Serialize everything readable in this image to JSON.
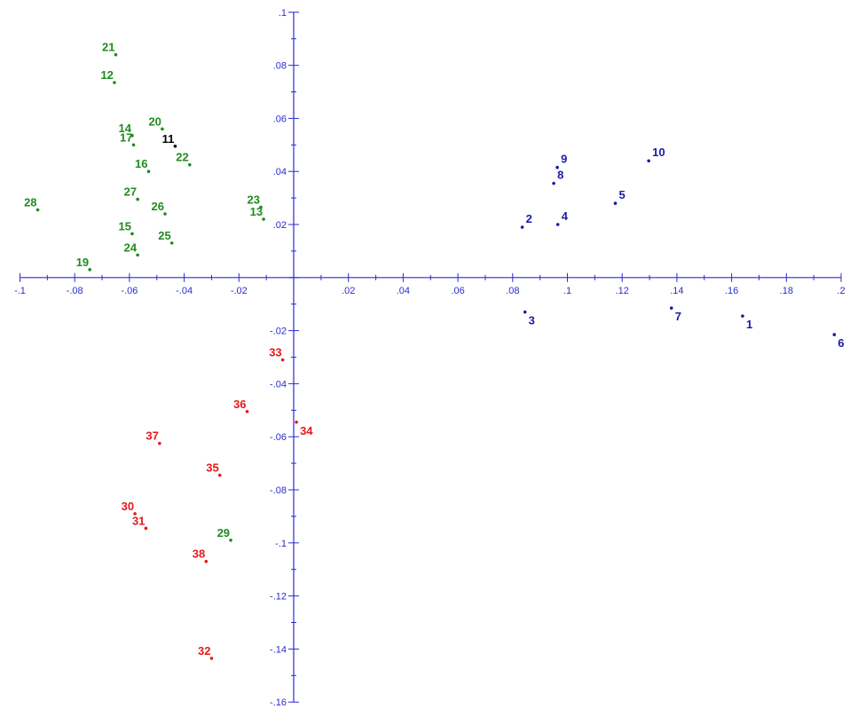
{
  "chart_data": {
    "type": "scatter",
    "title": "",
    "xlabel": "",
    "ylabel": "",
    "xlim": [
      -0.1,
      0.2
    ],
    "ylim": [
      -0.16,
      0.1
    ],
    "grid": false,
    "legend": "none",
    "axis_color": "#2b2bd0",
    "x_ticks": [
      {
        "v": -0.1,
        "label": "-.1"
      },
      {
        "v": -0.08,
        "label": "-.08"
      },
      {
        "v": -0.06,
        "label": "-.06"
      },
      {
        "v": -0.04,
        "label": "-.04"
      },
      {
        "v": -0.02,
        "label": "-.02"
      },
      {
        "v": 0.02,
        "label": ".02"
      },
      {
        "v": 0.04,
        "label": ".04"
      },
      {
        "v": 0.06,
        "label": ".06"
      },
      {
        "v": 0.08,
        "label": ".08"
      },
      {
        "v": 0.1,
        "label": ".1"
      },
      {
        "v": 0.12,
        "label": ".12"
      },
      {
        "v": 0.14,
        "label": ".14"
      },
      {
        "v": 0.16,
        "label": ".16"
      },
      {
        "v": 0.18,
        "label": ".18"
      },
      {
        "v": 0.2,
        "label": ".2"
      }
    ],
    "y_ticks": [
      {
        "v": 0.1,
        "label": ".1"
      },
      {
        "v": 0.08,
        "label": ".08"
      },
      {
        "v": 0.06,
        "label": ".06"
      },
      {
        "v": 0.04,
        "label": ".04"
      },
      {
        "v": 0.02,
        "label": ".02"
      },
      {
        "v": -0.02,
        "label": "-.02"
      },
      {
        "v": -0.04,
        "label": "-.04"
      },
      {
        "v": -0.06,
        "label": "-.06"
      },
      {
        "v": -0.08,
        "label": "-.08"
      },
      {
        "v": -0.1,
        "label": "-.1"
      },
      {
        "v": -0.12,
        "label": "-.12"
      },
      {
        "v": -0.14,
        "label": "-.14"
      },
      {
        "v": -0.16,
        "label": "-.16"
      }
    ],
    "colors": {
      "blue": "#1a1aa8",
      "green": "#1e8c1e",
      "red": "#e61919",
      "black": "#000000"
    },
    "points": [
      {
        "label": "1",
        "x": 0.164,
        "y": -0.0145,
        "color": "blue",
        "pos": "br"
      },
      {
        "label": "2",
        "x": 0.0835,
        "y": 0.019,
        "color": "blue",
        "pos": "tr"
      },
      {
        "label": "3",
        "x": 0.0845,
        "y": -0.013,
        "color": "blue",
        "pos": "br"
      },
      {
        "label": "4",
        "x": 0.0965,
        "y": 0.02,
        "color": "blue",
        "pos": "tr"
      },
      {
        "label": "5",
        "x": 0.1175,
        "y": 0.028,
        "color": "blue",
        "pos": "tr"
      },
      {
        "label": "6",
        "x": 0.1975,
        "y": -0.0215,
        "color": "blue",
        "pos": "br"
      },
      {
        "label": "7",
        "x": 0.138,
        "y": -0.0115,
        "color": "blue",
        "pos": "br"
      },
      {
        "label": "8",
        "x": 0.095,
        "y": 0.0355,
        "color": "blue",
        "pos": "tr"
      },
      {
        "label": "9",
        "x": 0.0963,
        "y": 0.0415,
        "color": "blue",
        "pos": "tr"
      },
      {
        "label": "10",
        "x": 0.1297,
        "y": 0.044,
        "color": "blue",
        "pos": "tr"
      },
      {
        "label": "11",
        "x": -0.0433,
        "y": 0.0495,
        "color": "black",
        "pos": "tl"
      },
      {
        "label": "12",
        "x": -0.0655,
        "y": 0.0735,
        "color": "green",
        "pos": "tl"
      },
      {
        "label": "13",
        "x": -0.011,
        "y": 0.022,
        "color": "green",
        "pos": "tl"
      },
      {
        "label": "14",
        "x": -0.059,
        "y": 0.0535,
        "color": "green",
        "pos": "tl"
      },
      {
        "label": "15",
        "x": -0.059,
        "y": 0.0165,
        "color": "green",
        "pos": "tl"
      },
      {
        "label": "16",
        "x": -0.053,
        "y": 0.04,
        "color": "green",
        "pos": "tl"
      },
      {
        "label": "17",
        "x": -0.0585,
        "y": 0.05,
        "color": "green",
        "pos": "tl"
      },
      {
        "label": "19",
        "x": -0.0745,
        "y": 0.003,
        "color": "green",
        "pos": "tl"
      },
      {
        "label": "20",
        "x": -0.048,
        "y": 0.056,
        "color": "green",
        "pos": "tl"
      },
      {
        "label": "21",
        "x": -0.065,
        "y": 0.084,
        "color": "green",
        "pos": "tl"
      },
      {
        "label": "22",
        "x": -0.038,
        "y": 0.0425,
        "color": "green",
        "pos": "tl"
      },
      {
        "label": "23",
        "x": -0.012,
        "y": 0.0265,
        "color": "green",
        "pos": "tl"
      },
      {
        "label": "24",
        "x": -0.057,
        "y": 0.0085,
        "color": "green",
        "pos": "tl"
      },
      {
        "label": "25",
        "x": -0.0445,
        "y": 0.013,
        "color": "green",
        "pos": "tl"
      },
      {
        "label": "26",
        "x": -0.047,
        "y": 0.024,
        "color": "green",
        "pos": "tl"
      },
      {
        "label": "27",
        "x": -0.057,
        "y": 0.0295,
        "color": "green",
        "pos": "tl"
      },
      {
        "label": "28",
        "x": -0.0935,
        "y": 0.0255,
        "color": "green",
        "pos": "tl"
      },
      {
        "label": "29",
        "x": -0.023,
        "y": -0.099,
        "color": "green",
        "pos": "tl"
      },
      {
        "label": "30",
        "x": -0.058,
        "y": -0.089,
        "color": "red",
        "pos": "tl"
      },
      {
        "label": "31",
        "x": -0.054,
        "y": -0.0945,
        "color": "red",
        "pos": "tl"
      },
      {
        "label": "32",
        "x": -0.03,
        "y": -0.1435,
        "color": "red",
        "pos": "tl"
      },
      {
        "label": "33",
        "x": -0.004,
        "y": -0.031,
        "color": "red",
        "pos": "tl"
      },
      {
        "label": "34",
        "x": 0.001,
        "y": -0.0545,
        "color": "red",
        "pos": "br"
      },
      {
        "label": "35",
        "x": -0.027,
        "y": -0.0745,
        "color": "red",
        "pos": "tl"
      },
      {
        "label": "36",
        "x": -0.017,
        "y": -0.0505,
        "color": "red",
        "pos": "tl"
      },
      {
        "label": "37",
        "x": -0.049,
        "y": -0.0625,
        "color": "red",
        "pos": "tl"
      },
      {
        "label": "38",
        "x": -0.032,
        "y": -0.107,
        "color": "red",
        "pos": "tl"
      }
    ]
  }
}
